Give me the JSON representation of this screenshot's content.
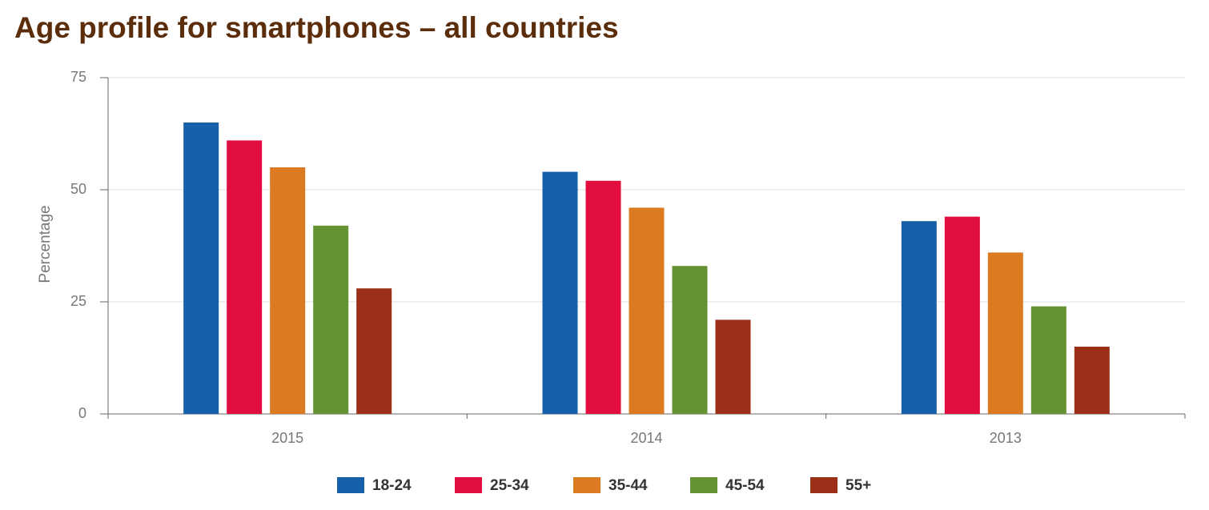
{
  "chart_data": {
    "type": "bar",
    "title": "Age profile for smartphones – all countries",
    "y_label": "Percentage",
    "categories": [
      "2015",
      "2014",
      "2013"
    ],
    "series": [
      {
        "name": "18-24",
        "color": "#1560a8",
        "values": [
          65,
          54,
          43
        ]
      },
      {
        "name": "25-34",
        "color": "#e20e40",
        "values": [
          61,
          52,
          44
        ]
      },
      {
        "name": "35-44",
        "color": "#dc7a22",
        "values": [
          55,
          46,
          36
        ]
      },
      {
        "name": "45-54",
        "color": "#659334",
        "values": [
          42,
          33,
          24
        ]
      },
      {
        "name": "55+",
        "color": "#9c2f17",
        "values": [
          28,
          21,
          15
        ]
      }
    ],
    "ylim": [
      0,
      75
    ],
    "yticks": [
      0,
      25,
      50,
      75
    ],
    "grid": true,
    "legend": "bottom"
  }
}
